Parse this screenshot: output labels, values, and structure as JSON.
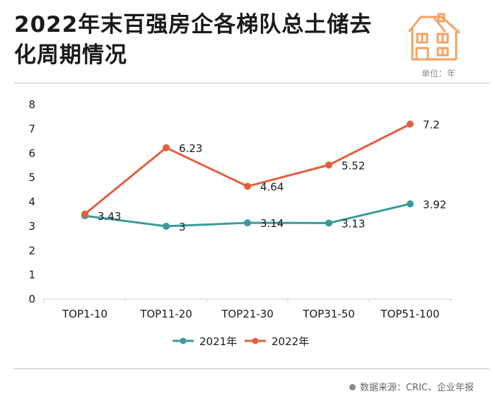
{
  "header": {
    "title_line1": "2022年末百强房企各梯队总土储去",
    "title_line2": "化周期情况",
    "unit": "单位：年"
  },
  "footer": {
    "source": "数据来源：CRIC、企业年报"
  },
  "colors": {
    "series_2021": "#3a9a9b",
    "series_2022": "#e2603e",
    "icon": "#f4a261"
  },
  "icons": {
    "header": "house-icon"
  },
  "chart_data": {
    "type": "line",
    "title": "2022年末百强房企各梯队总土储去化周期情况",
    "ylabel": "单位：年",
    "xlabel": "",
    "categories": [
      "TOP1-10",
      "TOP11-20",
      "TOP21-30",
      "TOP31-50",
      "TOP51-100"
    ],
    "yticks": [
      "0",
      "1",
      "2",
      "3",
      "4",
      "5",
      "6",
      "7",
      "8"
    ],
    "ylim": [
      0,
      8
    ],
    "grid": false,
    "legend_position": "bottom",
    "series": [
      {
        "name": "2021年",
        "values": [
          3.43,
          3,
          3.14,
          3.13,
          3.92
        ],
        "labels": [
          "3.43",
          "3",
          "3.14",
          "3.13",
          "3.92"
        ]
      },
      {
        "name": "2022年",
        "values": [
          3.5,
          6.23,
          4.64,
          5.52,
          7.2
        ],
        "labels": [
          "",
          "6.23",
          "4.64",
          "5.52",
          "7.2"
        ]
      }
    ]
  }
}
